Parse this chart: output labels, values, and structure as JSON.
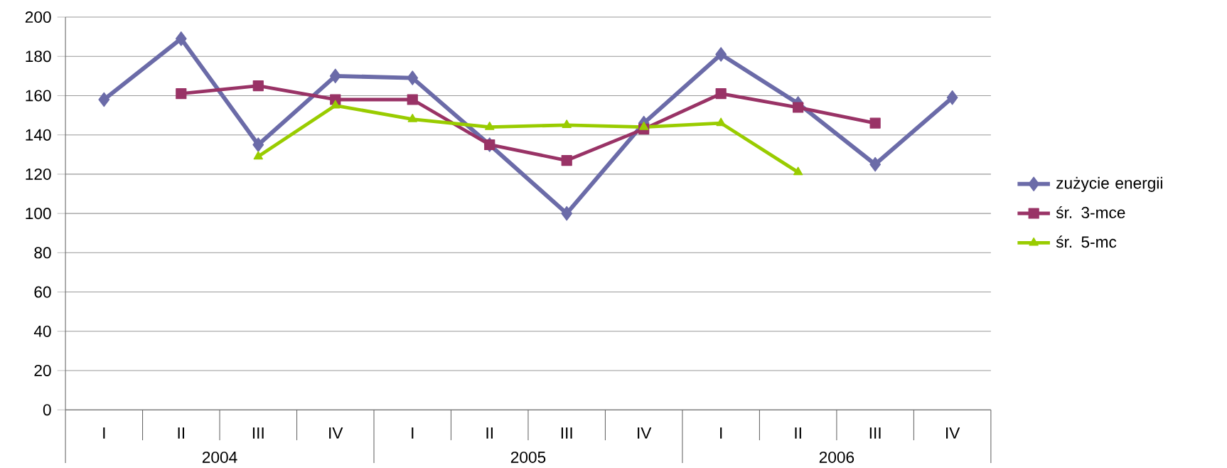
{
  "chart_data": {
    "type": "line",
    "categories": [
      "I",
      "II",
      "III",
      "IV",
      "I",
      "II",
      "III",
      "IV",
      "I",
      "II",
      "III",
      "IV"
    ],
    "series": [
      {
        "name": "zużycie energii",
        "color": "#6b6ba8",
        "marker": "diamond",
        "values": [
          158,
          189,
          135,
          170,
          169,
          135,
          100,
          146,
          181,
          156,
          125,
          159
        ]
      },
      {
        "name": "śr. 3-mce",
        "color": "#993366",
        "marker": "square",
        "values": [
          null,
          161,
          165,
          158,
          158,
          135,
          127,
          143,
          161,
          154,
          146,
          null
        ]
      },
      {
        "name": "śr. 5-mc",
        "color": "#99cc00",
        "marker": "triangle",
        "values": [
          null,
          null,
          129,
          155,
          148,
          144,
          145,
          144,
          146,
          121,
          null,
          null
        ]
      }
    ],
    "annotations": [
      "2004",
      "2005",
      "2006"
    ],
    "ylim": [
      0,
      200
    ],
    "yticks": [
      0,
      20,
      40,
      60,
      80,
      100,
      120,
      140,
      160,
      180,
      200
    ],
    "grid": "y",
    "legend": "right"
  }
}
